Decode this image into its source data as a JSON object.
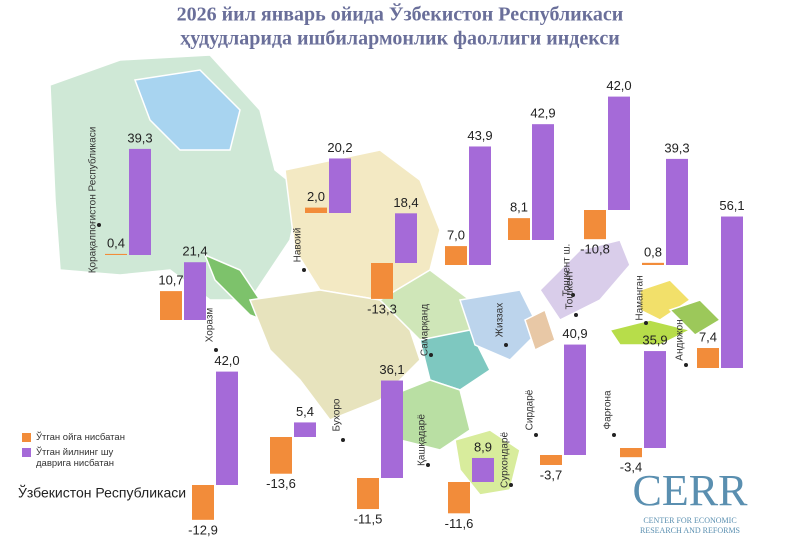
{
  "chart_data": {
    "type": "bar",
    "title_lines": [
      "2026 йил январь ойида Ўзбекистон Республикаси",
      "ҳудудларида ишбилармонлик фаоллиги индекси"
    ],
    "categories": [
      "Қорақалпоғистон Республикаси",
      "Хоразм",
      "Навоий",
      "Бухоро",
      "Самарқанд",
      "Қашқадарё",
      "Сурхондарё",
      "Жиззах",
      "Сирдарё",
      "Тошкент ш.",
      "Тошкент",
      "Наманган",
      "Фарғона",
      "Андижон",
      "Ўзбекистон Республикаси"
    ],
    "series": [
      {
        "name": "Ўтган ойга нисбатан",
        "color": "#f28c3a",
        "values": [
          0.4,
          10.7,
          2.0,
          -13.6,
          -13.3,
          -11.5,
          -11.6,
          7.0,
          -3.7,
          8.1,
          -10.8,
          0.8,
          -3.4,
          7.4,
          -12.9
        ],
        "value_labels": [
          "0,4",
          "10,7",
          "2,0",
          "-13,6",
          "-13,3",
          "-11,5",
          "-11,6",
          "7,0",
          "-3,7",
          "8,1",
          "-10,8",
          "0,8",
          "-3,4",
          "7,4",
          "-12,9"
        ]
      },
      {
        "name": "Ўтган йилнинг шу даврига нисбатан",
        "color": "#a56ad8",
        "values": [
          39.3,
          21.4,
          20.2,
          5.4,
          18.4,
          36.1,
          8.9,
          43.9,
          40.9,
          42.9,
          42.0,
          39.3,
          35.9,
          56.1,
          42.0
        ],
        "value_labels": [
          "39,3",
          "21,4",
          "20,2",
          "5,4",
          "18,4",
          "36,1",
          "8,9",
          "43,9",
          "40,9",
          "42,9",
          "42,0",
          "39,3",
          "35,9",
          "56,1",
          "42,0"
        ]
      }
    ],
    "logo": {
      "text": "CERR",
      "line1": "CENTER FOR ECONOMIC",
      "line2": "RESEARCH AND REFORMS"
    }
  }
}
